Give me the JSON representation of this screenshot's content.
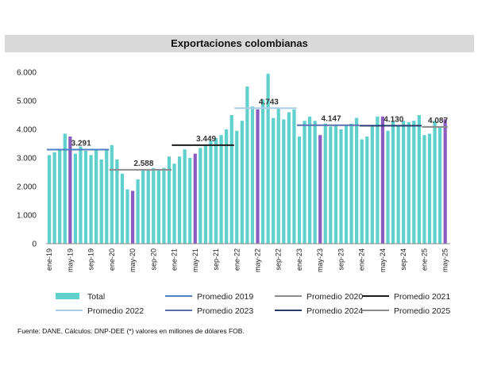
{
  "chart_data": {
    "type": "bar",
    "title": "Exportaciones colombianas",
    "xlabel": "",
    "ylabel": "",
    "ylim": [
      0,
      6000
    ],
    "yticks": [
      "0",
      "1.000",
      "2.000",
      "3.000",
      "4.000",
      "5.000",
      "6.000"
    ],
    "categories": [
      "ene-19",
      "feb-19",
      "mar-19",
      "abr-19",
      "may-19",
      "jun-19",
      "jul-19",
      "ago-19",
      "sep-19",
      "oct-19",
      "nov-19",
      "dic-19",
      "ene-20",
      "feb-20",
      "mar-20",
      "abr-20",
      "may-20",
      "jun-20",
      "jul-20",
      "ago-20",
      "sep-20",
      "oct-20",
      "nov-20",
      "dic-20",
      "ene-21",
      "feb-21",
      "mar-21",
      "abr-21",
      "may-21",
      "jun-21",
      "jul-21",
      "ago-21",
      "sep-21",
      "oct-21",
      "nov-21",
      "dic-21",
      "ene-22",
      "feb-22",
      "mar-22",
      "abr-22",
      "may-22",
      "jun-22",
      "jul-22",
      "ago-22",
      "sep-22",
      "oct-22",
      "nov-22",
      "dic-22",
      "ene-23",
      "feb-23",
      "mar-23",
      "abr-23",
      "may-23",
      "jun-23",
      "jul-23",
      "ago-23",
      "sep-23",
      "oct-23",
      "nov-23",
      "dic-23",
      "ene-24",
      "feb-24",
      "mar-24",
      "abr-24",
      "may-24",
      "jun-24",
      "jul-24",
      "ago-24",
      "sep-24",
      "oct-24",
      "nov-24",
      "dic-24",
      "ene-25",
      "feb-25",
      "mar-25",
      "abr-25",
      "may-25"
    ],
    "xtick_labels": [
      "ene-19",
      "may-19",
      "sep-19",
      "ene-20",
      "may-20",
      "sep-20",
      "ene-21",
      "may-21",
      "sep-21",
      "ene-22",
      "may-22",
      "sep-22",
      "ene-23",
      "may-23",
      "sep-23",
      "ene-24",
      "may-24",
      "sep-24",
      "ene-25",
      "may-25"
    ],
    "series": [
      {
        "name": "Total",
        "values": [
          3100,
          3200,
          3300,
          3850,
          3750,
          3150,
          3400,
          3250,
          3100,
          3300,
          2950,
          3300,
          3450,
          2950,
          2450,
          1900,
          1850,
          2250,
          2600,
          2600,
          2650,
          2600,
          2650,
          3050,
          2800,
          3050,
          3300,
          3000,
          3150,
          3350,
          3450,
          3600,
          3700,
          3800,
          4000,
          4500,
          3950,
          4300,
          5500,
          4800,
          4700,
          5050,
          5950,
          4400,
          4750,
          4350,
          4600,
          4700,
          3750,
          4300,
          4450,
          4300,
          3800,
          4200,
          4100,
          4150,
          4000,
          4150,
          4200,
          4400,
          3650,
          3750,
          4100,
          4450,
          4450,
          3950,
          4300,
          4150,
          4300,
          4250,
          4300,
          4500,
          3800,
          3850,
          4300,
          4100,
          4350
        ]
      }
    ],
    "highlight_months": [
      "may-19",
      "may-20",
      "may-21",
      "may-22",
      "may-23",
      "may-24",
      "may-25"
    ],
    "averages": [
      {
        "name": "Promedio 2019",
        "value": 3291,
        "label": "3.291",
        "from": "ene-19",
        "to": "dic-19"
      },
      {
        "name": "Promedio 2020",
        "value": 2588,
        "label": "2.588",
        "from": "ene-20",
        "to": "dic-20"
      },
      {
        "name": "Promedio 2021",
        "value": 3449,
        "label": "3.449",
        "from": "ene-21",
        "to": "dic-21"
      },
      {
        "name": "Promedio 2022",
        "value": 4743,
        "label": "4.743",
        "from": "ene-22",
        "to": "dic-22"
      },
      {
        "name": "Promedio 2023",
        "value": 4147,
        "label": "4.147",
        "from": "ene-23",
        "to": "dic-23"
      },
      {
        "name": "Promedio 2024",
        "value": 4130,
        "label": "4.130",
        "from": "ene-24",
        "to": "dic-24"
      },
      {
        "name": "Promedio 2025",
        "value": 4087,
        "label": "4.087",
        "from": "ene-25",
        "to": "may-25"
      }
    ],
    "legend": [
      "Total",
      "Promedio 2019",
      "Promedio 2020",
      "Promedio 2021",
      "Promedio 2022",
      "Promedio 2023",
      "Promedio 2024",
      "Promedio 2025"
    ],
    "colors": {
      "bar": "#5fd0cc",
      "highlight": "#8a5cc0",
      "Promedio 2019": "#4a7fc1",
      "Promedio 2020": "#8c8c8c",
      "Promedio 2021": "#1a1a1a",
      "Promedio 2022": "#a9cde6",
      "Promedio 2023": "#5b6fb0",
      "Promedio 2024": "#2b3a6e",
      "Promedio 2025": "#8a8a8a"
    },
    "source_note": "Fuente: DANE, Cálculos: DNP-DEE (*) valores en millones de dólares FOB."
  }
}
